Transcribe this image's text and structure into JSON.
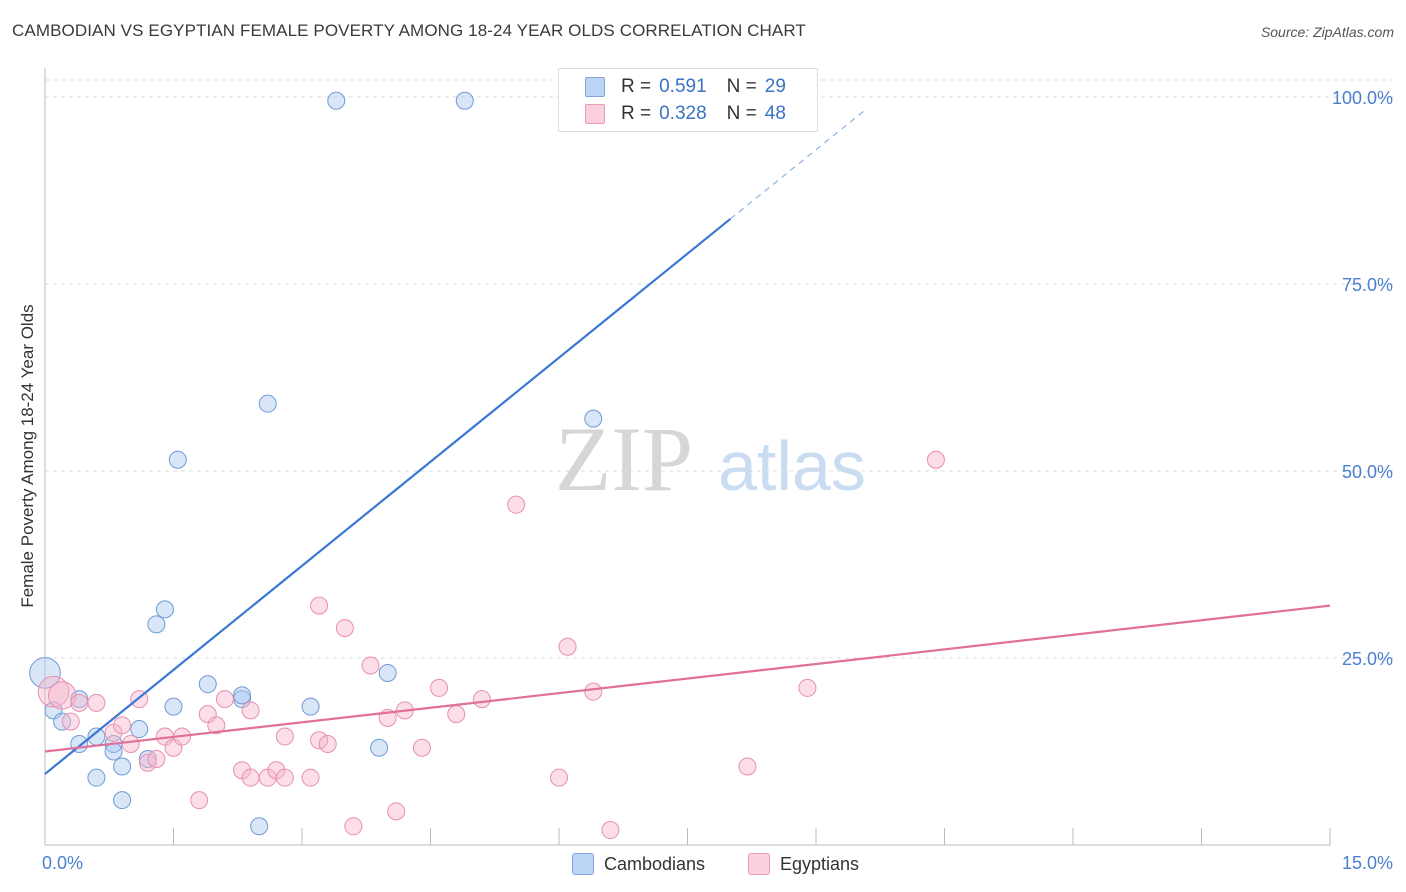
{
  "title": "CAMBODIAN VS EGYPTIAN FEMALE POVERTY AMONG 18-24 YEAR OLDS CORRELATION CHART",
  "source": "Source: ZipAtlas.com",
  "watermark": {
    "zip": "ZIP",
    "atlas": "atlas"
  },
  "legend": {
    "r_label": "R =",
    "n_label": "N =",
    "rows": [
      {
        "r": "0.591",
        "n": "29",
        "color": "#a9c8f0"
      },
      {
        "r": "0.328",
        "n": "48",
        "color": "#f6b6cb"
      }
    ]
  },
  "bottom_legend": [
    "Cambodians",
    "Egyptians"
  ],
  "chart_data": {
    "type": "scatter",
    "title": "CAMBODIAN VS EGYPTIAN FEMALE POVERTY AMONG 18-24 YEAR OLDS CORRELATION CHART",
    "xlabel": "",
    "ylabel": "Female Poverty Among 18-24 Year Olds",
    "xlim": [
      0,
      15
    ],
    "ylim": [
      0,
      100
    ],
    "x_tick_labels": [
      "0.0%",
      "15.0%"
    ],
    "y_tick_values": [
      25,
      50,
      75,
      100
    ],
    "y_tick_labels": [
      "25.0%",
      "50.0%",
      "75.0%",
      "100.0%"
    ],
    "grid": true,
    "colors": {
      "cambodians": "#3a78d4",
      "egyptians": "#e0709a",
      "tick_label": "#4a7fd0"
    },
    "series": [
      {
        "name": "Cambodians",
        "r": 0.591,
        "n": 29,
        "trend": {
          "x0": 0,
          "y0": 9.5,
          "x1": 8.0,
          "y1": 83.7,
          "dash_to_x": 9.6,
          "dash_to_y": 98.5
        },
        "points": [
          [
            0.0,
            23.0,
            18
          ],
          [
            0.1,
            18.0,
            10
          ],
          [
            0.2,
            16.5,
            10
          ],
          [
            0.4,
            19.5,
            10
          ],
          [
            0.4,
            13.5,
            10
          ],
          [
            0.6,
            9.0,
            10
          ],
          [
            0.6,
            14.5,
            10
          ],
          [
            0.8,
            13.5,
            10
          ],
          [
            0.8,
            12.5,
            10
          ],
          [
            0.9,
            10.5,
            10
          ],
          [
            0.9,
            6.0,
            10
          ],
          [
            1.1,
            15.5,
            10
          ],
          [
            1.2,
            11.5,
            10
          ],
          [
            1.3,
            29.5,
            10
          ],
          [
            1.4,
            31.5,
            10
          ],
          [
            1.55,
            51.5,
            10
          ],
          [
            1.5,
            18.5,
            10
          ],
          [
            1.9,
            21.5,
            10
          ],
          [
            2.3,
            19.5,
            10
          ],
          [
            2.3,
            20.0,
            10
          ],
          [
            2.5,
            2.5,
            10
          ],
          [
            2.6,
            59.0,
            10
          ],
          [
            3.1,
            18.5,
            10
          ],
          [
            3.4,
            99.5,
            10
          ],
          [
            3.9,
            13.0,
            10
          ],
          [
            4.0,
            23.0,
            10
          ],
          [
            4.9,
            99.5,
            10
          ],
          [
            6.4,
            57.0,
            10
          ]
        ]
      },
      {
        "name": "Egyptians",
        "r": 0.328,
        "n": 48,
        "trend": {
          "x0": 0,
          "y0": 12.5,
          "x1": 15.0,
          "y1": 32.0
        },
        "points": [
          [
            0.1,
            20.5,
            18
          ],
          [
            0.2,
            20.0,
            16
          ],
          [
            0.3,
            16.5,
            10
          ],
          [
            0.4,
            19.0,
            10
          ],
          [
            0.6,
            19.0,
            10
          ],
          [
            0.8,
            15.0,
            10
          ],
          [
            0.9,
            16.0,
            10
          ],
          [
            1.0,
            13.5,
            10
          ],
          [
            1.1,
            19.5,
            10
          ],
          [
            1.2,
            11.0,
            10
          ],
          [
            1.3,
            11.5,
            10
          ],
          [
            1.4,
            14.5,
            10
          ],
          [
            1.5,
            13.0,
            10
          ],
          [
            1.6,
            14.5,
            10
          ],
          [
            1.8,
            6.0,
            10
          ],
          [
            1.9,
            17.5,
            10
          ],
          [
            2.0,
            16.0,
            10
          ],
          [
            2.1,
            19.5,
            10
          ],
          [
            2.3,
            10.0,
            10
          ],
          [
            2.4,
            9.0,
            10
          ],
          [
            2.4,
            18.0,
            10
          ],
          [
            2.6,
            9.0,
            10
          ],
          [
            2.7,
            10.0,
            10
          ],
          [
            2.8,
            9.0,
            10
          ],
          [
            2.8,
            14.5,
            10
          ],
          [
            3.1,
            9.0,
            10
          ],
          [
            3.2,
            14.0,
            10
          ],
          [
            3.3,
            13.5,
            10
          ],
          [
            3.2,
            32.0,
            10
          ],
          [
            3.5,
            29.0,
            10
          ],
          [
            3.6,
            2.5,
            10
          ],
          [
            3.8,
            24.0,
            10
          ],
          [
            4.0,
            17.0,
            10
          ],
          [
            4.1,
            4.5,
            10
          ],
          [
            4.2,
            18.0,
            10
          ],
          [
            4.4,
            13.0,
            10
          ],
          [
            4.6,
            21.0,
            10
          ],
          [
            4.8,
            17.5,
            10
          ],
          [
            5.1,
            19.5,
            10
          ],
          [
            5.5,
            45.5,
            10
          ],
          [
            6.0,
            9.0,
            10
          ],
          [
            6.1,
            26.5,
            10
          ],
          [
            6.4,
            20.5,
            10
          ],
          [
            6.6,
            2.0,
            10
          ],
          [
            8.2,
            10.5,
            10
          ],
          [
            8.9,
            21.0,
            10
          ],
          [
            10.4,
            51.5,
            10
          ]
        ]
      }
    ]
  }
}
